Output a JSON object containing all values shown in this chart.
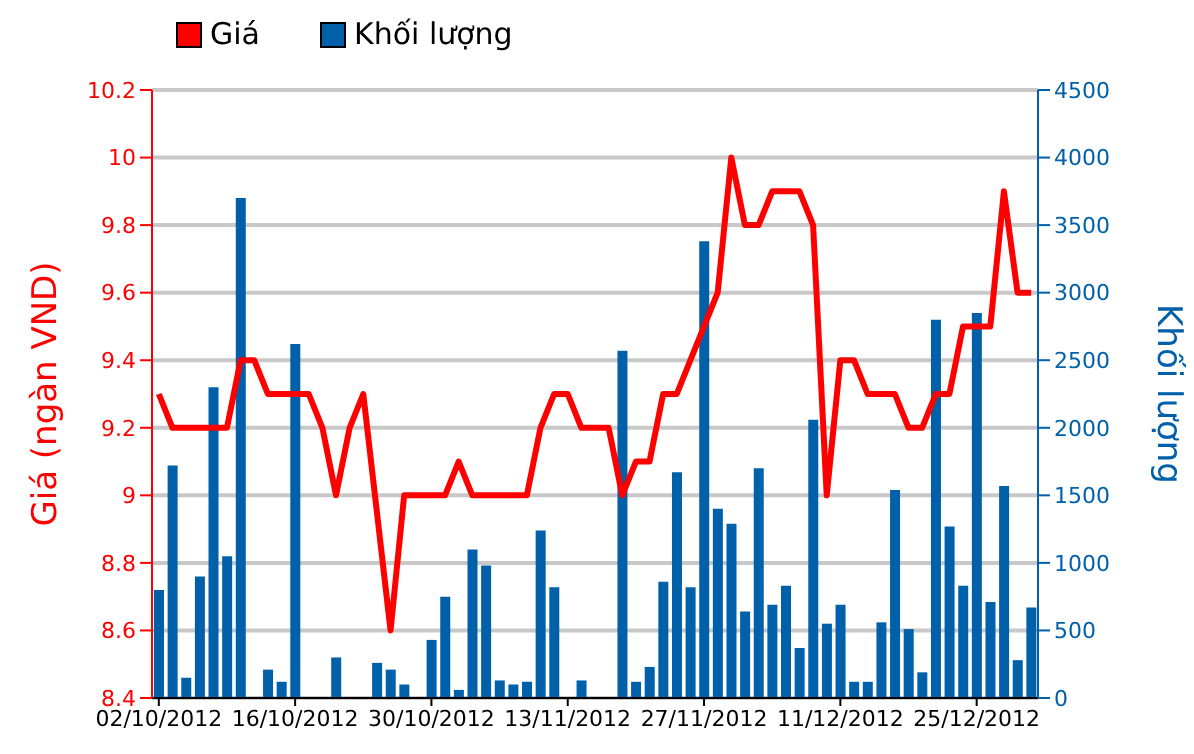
{
  "chart_data": {
    "type": "line",
    "ylabel": "Giá (ngàn VND)",
    "y2label": "Khối lượng",
    "categories": [
      "02/10/2012",
      null,
      null,
      null,
      null,
      null,
      null,
      null,
      null,
      null,
      "16/10/2012",
      null,
      null,
      null,
      null,
      null,
      null,
      null,
      null,
      null,
      "30/10/2012",
      null,
      null,
      null,
      null,
      null,
      null,
      null,
      null,
      null,
      "13/11/2012",
      null,
      null,
      null,
      null,
      null,
      null,
      null,
      null,
      null,
      "27/11/2012",
      null,
      null,
      null,
      null,
      null,
      null,
      null,
      null,
      null,
      "11/12/2012",
      null,
      null,
      null,
      null,
      null,
      null,
      null,
      null,
      null,
      "25/12/2012",
      null,
      null,
      null,
      null
    ],
    "series": [
      {
        "name": "Giá",
        "color": "#ff0000",
        "values": [
          9.3,
          9.2,
          9.2,
          9.2,
          9.2,
          9.2,
          9.4,
          9.4,
          9.3,
          9.3,
          9.3,
          9.3,
          9.2,
          9.0,
          9.2,
          9.3,
          8.95,
          8.6,
          9.0,
          9.0,
          9.0,
          9.0,
          9.1,
          9.0,
          9.0,
          9.0,
          9.0,
          9.0,
          9.2,
          9.3,
          9.3,
          9.2,
          9.2,
          9.2,
          9.0,
          9.1,
          9.1,
          9.3,
          9.3,
          9.4,
          9.5,
          9.6,
          10.0,
          9.8,
          9.8,
          9.9,
          9.9,
          9.9,
          9.8,
          9.0,
          9.4,
          9.4,
          9.3,
          9.3,
          9.3,
          9.2,
          9.2,
          9.3,
          9.3,
          9.5,
          9.5,
          9.5,
          9.9,
          9.6,
          9.6
        ]
      },
      {
        "name": "Khối lượng",
        "type": "bar",
        "axis": "y2",
        "color": "#0060aa",
        "values": [
          800,
          1720,
          150,
          900,
          2300,
          1050,
          3700,
          0,
          210,
          120,
          2620,
          0,
          0,
          300,
          0,
          0,
          260,
          210,
          100,
          0,
          430,
          750,
          60,
          1100,
          980,
          130,
          100,
          120,
          1240,
          820,
          0,
          130,
          0,
          0,
          2570,
          120,
          230,
          860,
          1670,
          820,
          3380,
          1400,
          1290,
          640,
          1700,
          690,
          830,
          370,
          2060,
          550,
          690,
          120,
          120,
          560,
          1540,
          510,
          190,
          2800,
          1270,
          830,
          2850,
          710,
          1570,
          280,
          670
        ]
      }
    ],
    "ylim": [
      8.4,
      10.2
    ],
    "yticks": [
      8.4,
      8.6,
      8.8,
      9,
      9.2,
      9.4,
      9.6,
      9.8,
      10,
      10.2
    ],
    "y2lim": [
      0,
      4500
    ],
    "y2ticks": [
      0,
      500,
      1000,
      1500,
      2000,
      2500,
      3000,
      3500,
      4000,
      4500
    ],
    "grid": "y",
    "legend": "top left"
  }
}
